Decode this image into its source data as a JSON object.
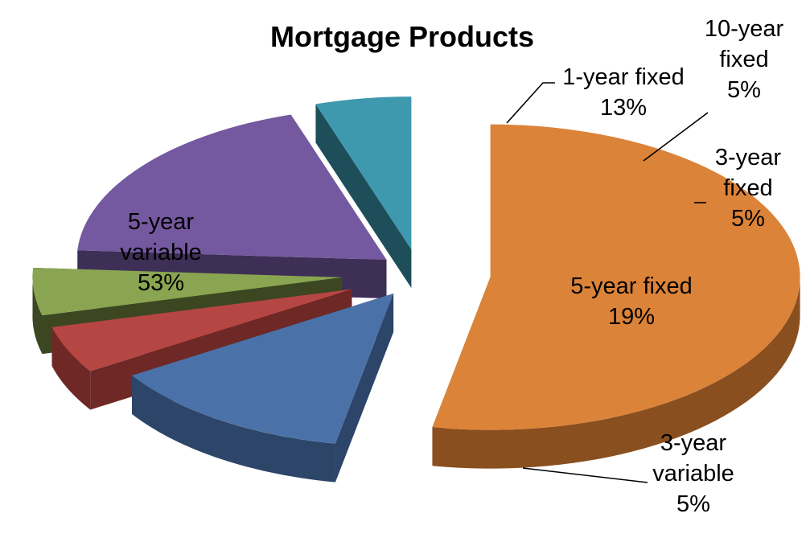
{
  "chart_data": {
    "type": "pie",
    "title": "Mortgage Products",
    "series": [
      {
        "name": "5-year variable",
        "value": 53,
        "label": "53%",
        "color": "#DC833A",
        "side": "#8A4F1F"
      },
      {
        "name": "1-year fixed",
        "value": 13,
        "label": "13%",
        "color": "#4A72A8",
        "side": "#2C4568"
      },
      {
        "name": "10-year fixed",
        "value": 5,
        "label": "5%",
        "color": "#B64643",
        "side": "#6E2826"
      },
      {
        "name": "3-year fixed",
        "value": 5,
        "label": "5%",
        "color": "#8AA552",
        "side": "#3C4722"
      },
      {
        "name": "5-year fixed",
        "value": 19,
        "label": "19%",
        "color": "#7459A0",
        "side": "#3E2F56"
      },
      {
        "name": "3-year variable",
        "value": 5,
        "label": "5%",
        "color": "#3E99AE",
        "side": "#1E4E59"
      }
    ],
    "legend": "none",
    "style": "3d-exploded"
  }
}
